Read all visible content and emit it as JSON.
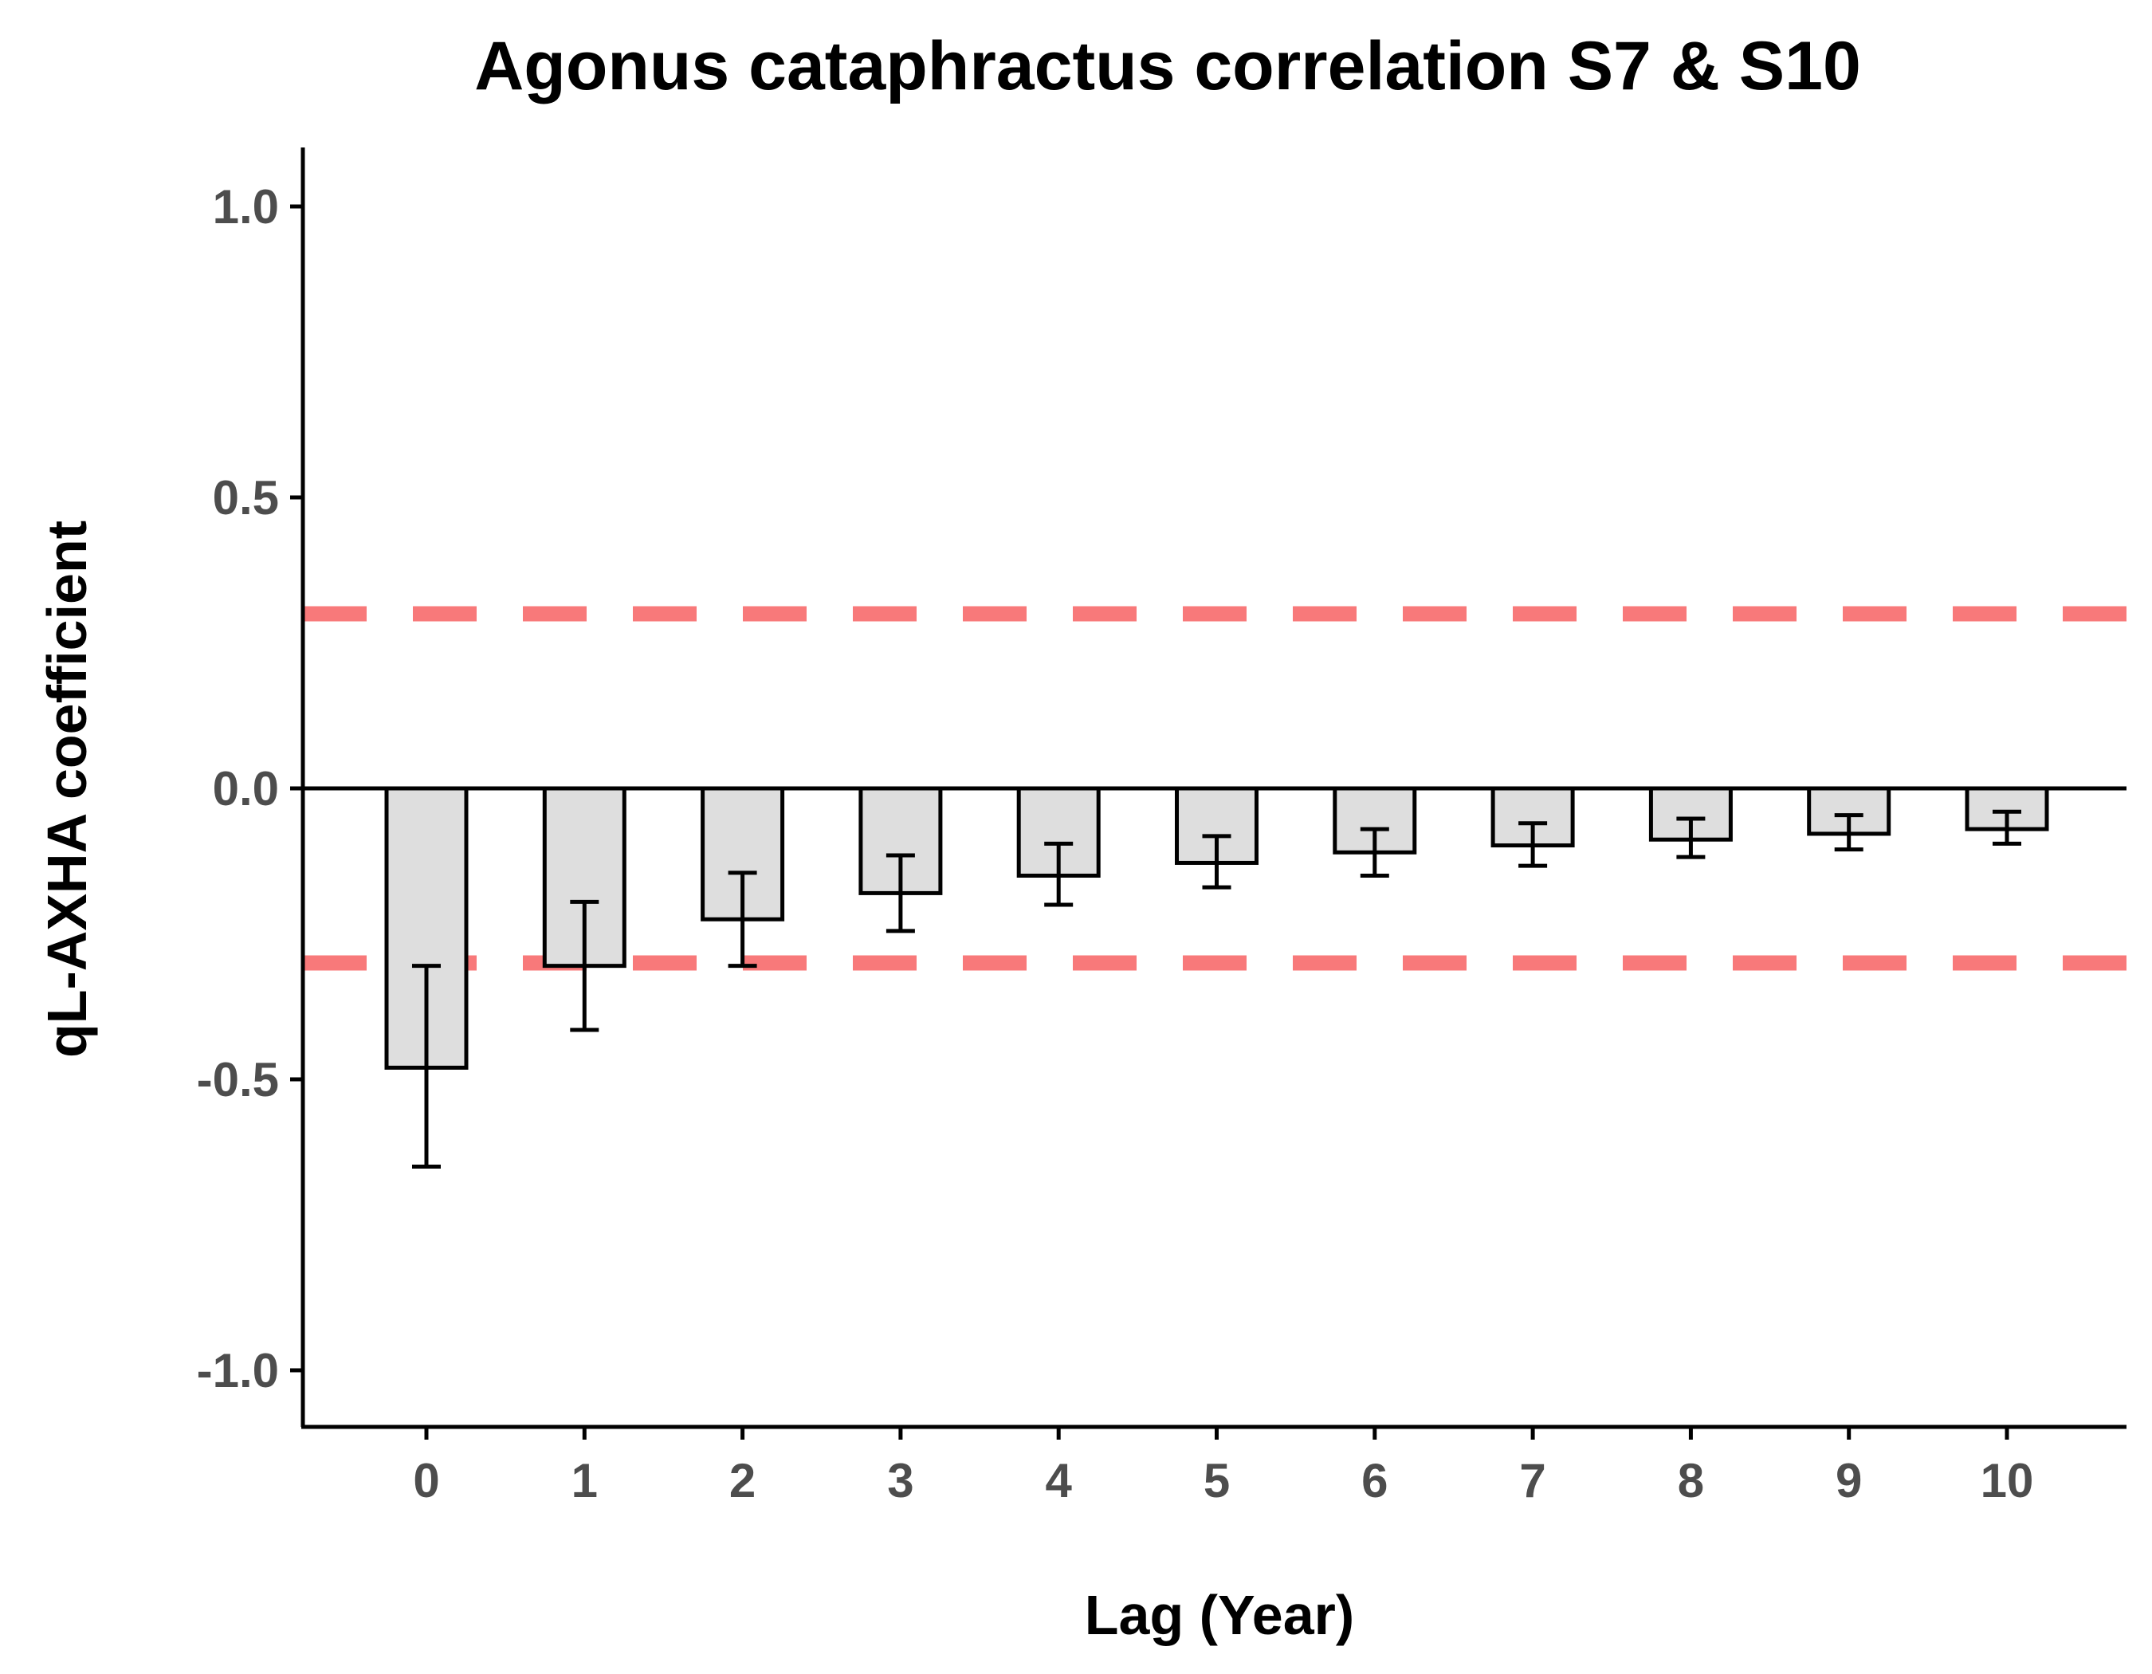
{
  "chart_data": {
    "type": "bar",
    "title": "Agonus cataphractus correlation S7 & S10",
    "xlabel": "Lag (Year)",
    "ylabel": "qL-AXHA coefficient",
    "categories": [
      "0",
      "1",
      "2",
      "3",
      "4",
      "5",
      "6",
      "7",
      "8",
      "9",
      "10"
    ],
    "values": [
      -0.48,
      -0.305,
      -0.225,
      -0.18,
      -0.15,
      -0.128,
      -0.11,
      -0.098,
      -0.088,
      -0.078,
      -0.07
    ],
    "error_low": [
      -0.65,
      -0.415,
      -0.305,
      -0.245,
      -0.2,
      -0.17,
      -0.15,
      -0.133,
      -0.118,
      -0.105,
      -0.095
    ],
    "error_high": [
      -0.305,
      -0.195,
      -0.145,
      -0.115,
      -0.095,
      -0.082,
      -0.07,
      -0.06,
      -0.052,
      -0.046,
      -0.04
    ],
    "ylim": [
      -1.1,
      1.1
    ],
    "y_ticks": [
      1.0,
      0.5,
      0.0,
      -0.5,
      -1.0
    ],
    "y_tick_labels": [
      "1.0",
      "0.5",
      "0.0",
      "-0.5",
      "-1.0"
    ],
    "reference_lines": [
      0.3,
      -0.3
    ],
    "colors": {
      "bar_fill": "#dedede",
      "bar_stroke": "#000000",
      "reference_line": "#f8797a",
      "axis": "#000000",
      "tick_label": "#4d4d4d"
    },
    "grid": false,
    "legend": "none"
  }
}
